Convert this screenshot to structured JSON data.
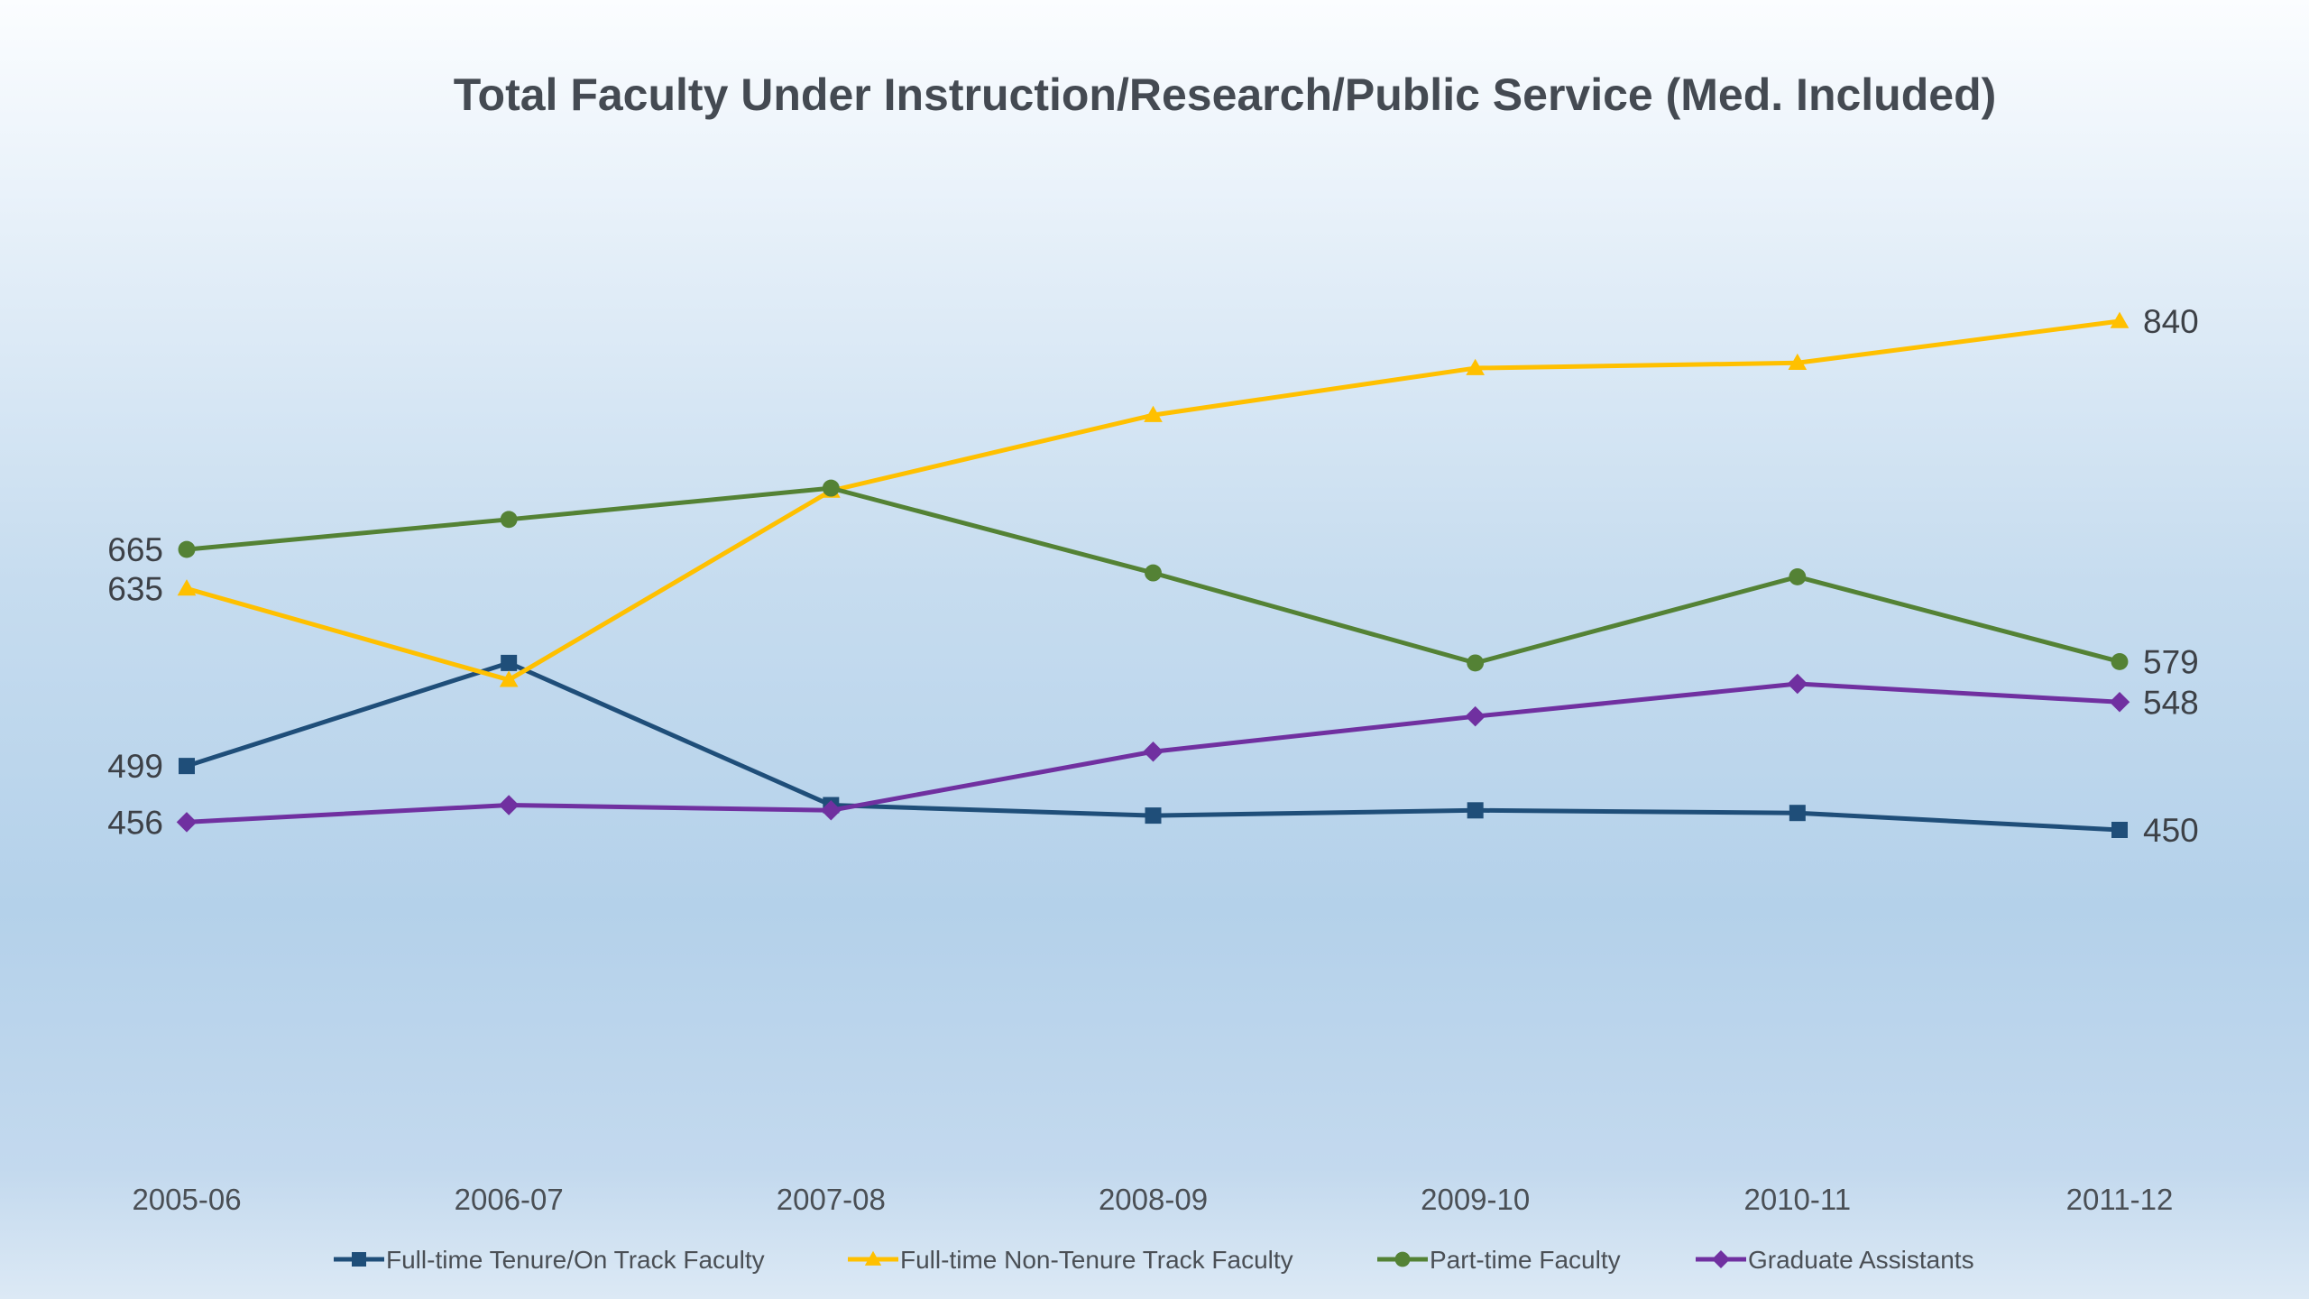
{
  "chart_data": {
    "type": "line",
    "title": "Total Faculty Under Instruction/Research/Public Service (Med. Included)",
    "xlabel": "",
    "ylabel": "",
    "categories": [
      "2005-06",
      "2006-07",
      "2007-08",
      "2008-09",
      "2009-10",
      "2010-11",
      "2011-12"
    ],
    "ylim": [
      300,
      900
    ],
    "grid": false,
    "legend_position": "bottom",
    "series": [
      {
        "name": "Full-time Tenure/On Track Faculty",
        "color": "#1f4e79",
        "marker": "square",
        "values": [
          499,
          578,
          469,
          461,
          465,
          463,
          450
        ],
        "labels": {
          "0": "499",
          "6": "450"
        }
      },
      {
        "name": "Full-time Non-Tenure Track Faculty",
        "color": "#ffc000",
        "marker": "triangle",
        "values": [
          635,
          565,
          710,
          768,
          804,
          808,
          840
        ],
        "labels": {
          "0": "635",
          "6": "840"
        }
      },
      {
        "name": "Part-time Faculty",
        "color": "#548235",
        "marker": "circle",
        "values": [
          665,
          688,
          712,
          647,
          578,
          644,
          579
        ],
        "labels": {
          "0": "665",
          "6": "579"
        }
      },
      {
        "name": "Graduate Assistants",
        "color": "#7030a0",
        "marker": "diamond",
        "values": [
          456,
          469,
          465,
          510,
          537,
          562,
          548
        ],
        "labels": {
          "0": "456",
          "6": "548"
        }
      }
    ]
  }
}
